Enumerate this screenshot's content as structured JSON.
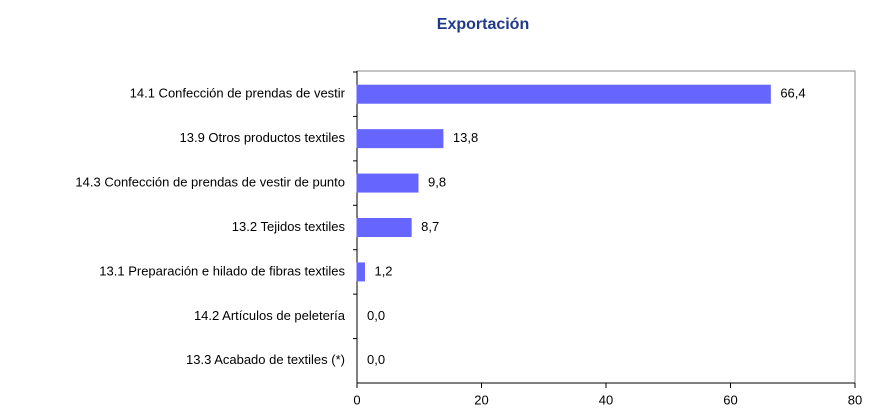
{
  "chart_data": {
    "type": "bar",
    "orientation": "horizontal",
    "title": "Exportación",
    "categories": [
      "14.1 Confección de prendas de vestir",
      "13.9 Otros productos textiles",
      "14.3 Confección de prendas de vestir de punto",
      "13.2 Tejidos textiles",
      "13.1 Preparación e hilado de fibras textiles",
      "14.2 Artículos de peletería",
      "13.3 Acabado de textiles (*)"
    ],
    "values": [
      66.4,
      13.8,
      9.8,
      8.7,
      1.2,
      0.0,
      0.0
    ],
    "value_labels": [
      "66,4",
      "13,8",
      "9,8",
      "8,7",
      "1,2",
      "0,0",
      "0,0"
    ],
    "color": "#6666ff",
    "xlim": [
      0,
      80
    ],
    "xticks": [
      0,
      20,
      40,
      60,
      80
    ]
  }
}
